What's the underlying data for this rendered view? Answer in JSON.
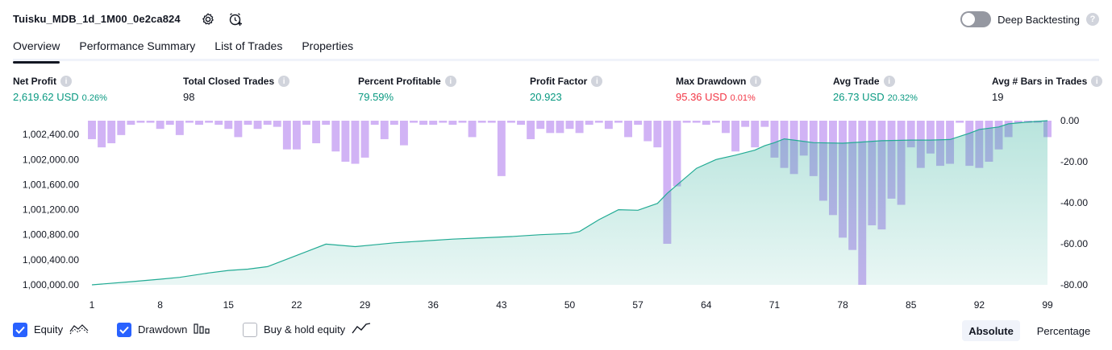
{
  "header": {
    "title": "Tuisku_MDB_1d_1M00_0e2ca824",
    "deep_backtesting_label": "Deep Backtesting",
    "help_glyph": "?"
  },
  "tabs": [
    {
      "label": "Overview",
      "active": true
    },
    {
      "label": "Performance Summary",
      "active": false
    },
    {
      "label": "List of Trades",
      "active": false
    },
    {
      "label": "Properties",
      "active": false
    }
  ],
  "metrics": [
    {
      "label": "Net Profit",
      "value": "2,619.62 USD",
      "sub": "0.26%",
      "color": "#089981"
    },
    {
      "label": "Total Closed Trades",
      "value": "98",
      "sub": "",
      "color": "#131722"
    },
    {
      "label": "Percent Profitable",
      "value": "79.59%",
      "sub": "",
      "color": "#089981"
    },
    {
      "label": "Profit Factor",
      "value": "20.923",
      "sub": "",
      "color": "#089981"
    },
    {
      "label": "Max Drawdown",
      "value": "95.36 USD",
      "sub": "0.01%",
      "color": "#f23645"
    },
    {
      "label": "Avg Trade",
      "value": "26.73 USD",
      "sub": "20.32%",
      "color": "#089981"
    },
    {
      "label": "Avg # Bars in Trades",
      "value": "19",
      "sub": "",
      "color": "#131722"
    }
  ],
  "info_glyph": "i",
  "chart_data": {
    "type": "area",
    "x_ticks": [
      1,
      8,
      15,
      22,
      29,
      36,
      43,
      50,
      57,
      64,
      71,
      78,
      85,
      92,
      99
    ],
    "left_axis": {
      "ticks": [
        "1,000,000.00",
        "1,000,400.00",
        "1,000,800.00",
        "1,001,200.00",
        "1,001,600.00",
        "1,002,000.00",
        "1,002,400.00"
      ],
      "ylim": [
        1000000,
        1002620
      ]
    },
    "right_axis": {
      "ticks": [
        "0.00",
        "-20.00",
        "-40.00",
        "-60.00",
        "-80.00"
      ],
      "ylim": [
        -80,
        0
      ]
    },
    "colors": {
      "equity_line": "#22ab94",
      "equity_fill": "#22ab94",
      "drawdown": "#d1b3f5",
      "drawdown_overlap": "#a8a8e8"
    },
    "series": [
      {
        "name": "Equity",
        "x": [
          1,
          5,
          8,
          10,
          13,
          15,
          17,
          19,
          22,
          25,
          28,
          30,
          32,
          35,
          38,
          41,
          44,
          47,
          50,
          51,
          53,
          55,
          57,
          59,
          60,
          63,
          65,
          67,
          69,
          70,
          71,
          72,
          73,
          75,
          78,
          80,
          82,
          85,
          87,
          89,
          91,
          92,
          94,
          95,
          97,
          99
        ],
        "values": [
          1000000,
          1000050,
          1000090,
          1000120,
          1000190,
          1000230,
          1000250,
          1000290,
          1000470,
          1000650,
          1000610,
          1000640,
          1000670,
          1000700,
          1000730,
          1000750,
          1000770,
          1000800,
          1000820,
          1000850,
          1001040,
          1001200,
          1001190,
          1001300,
          1001460,
          1001860,
          1002000,
          1002070,
          1002150,
          1002220,
          1002270,
          1002330,
          1002310,
          1002270,
          1002260,
          1002280,
          1002300,
          1002310,
          1002310,
          1002320,
          1002420,
          1002480,
          1002520,
          1002570,
          1002600,
          1002620
        ]
      },
      {
        "name": "Drawdown",
        "x": [
          1,
          2,
          3,
          4,
          5,
          6,
          7,
          8,
          9,
          10,
          11,
          12,
          13,
          14,
          15,
          16,
          17,
          18,
          19,
          20,
          21,
          22,
          23,
          24,
          25,
          26,
          27,
          28,
          29,
          30,
          31,
          32,
          33,
          34,
          35,
          36,
          37,
          38,
          39,
          40,
          41,
          42,
          43,
          44,
          45,
          46,
          47,
          48,
          49,
          50,
          51,
          52,
          53,
          54,
          55,
          56,
          57,
          58,
          59,
          60,
          61,
          62,
          63,
          64,
          65,
          66,
          67,
          68,
          69,
          70,
          71,
          72,
          73,
          74,
          75,
          76,
          77,
          78,
          79,
          80,
          81,
          82,
          83,
          84,
          85,
          86,
          87,
          88,
          89,
          90,
          91,
          92,
          93,
          94,
          95,
          96,
          97,
          98,
          99
        ],
        "values": [
          -9,
          -13,
          -11,
          -7,
          -2,
          -1,
          -1,
          -4,
          -2,
          -7,
          -1,
          -2,
          -1,
          -2,
          -4,
          -8,
          -2,
          -4,
          -2,
          -3,
          -14,
          -14,
          -2,
          -11,
          -2,
          -15,
          -20,
          -21,
          -18,
          -2,
          -9,
          -2,
          -12,
          -1,
          -2,
          -2,
          -1,
          -2,
          -1,
          -8,
          -1,
          -1,
          -27,
          -1,
          -2,
          -9,
          -4,
          -6,
          -6,
          -4,
          -6,
          -2,
          -1,
          -4,
          -1,
          -8,
          -2,
          -10,
          -13,
          -60,
          -32,
          -1,
          -1,
          -2,
          -1,
          -6,
          -15,
          -3,
          -13,
          -3,
          -18,
          -23,
          -26,
          -17,
          -27,
          -39,
          -46,
          -57,
          -63,
          -80,
          -51,
          -53,
          -38,
          -41,
          -13,
          -23,
          -16,
          -22,
          -21,
          -1,
          -22,
          -23,
          -20,
          -14,
          -8,
          -1,
          -1,
          -1,
          -8
        ]
      }
    ],
    "grid": false,
    "legend": "bottom-left"
  },
  "legend": [
    {
      "label": "Equity",
      "checked": true,
      "icon": "equity-area-icon"
    },
    {
      "label": "Drawdown",
      "checked": true,
      "icon": "drawdown-bars-icon"
    },
    {
      "label": "Buy & hold equity",
      "checked": false,
      "icon": "buy-hold-line-icon"
    }
  ],
  "modes": [
    {
      "label": "Absolute",
      "active": true
    },
    {
      "label": "Percentage",
      "active": false
    }
  ]
}
